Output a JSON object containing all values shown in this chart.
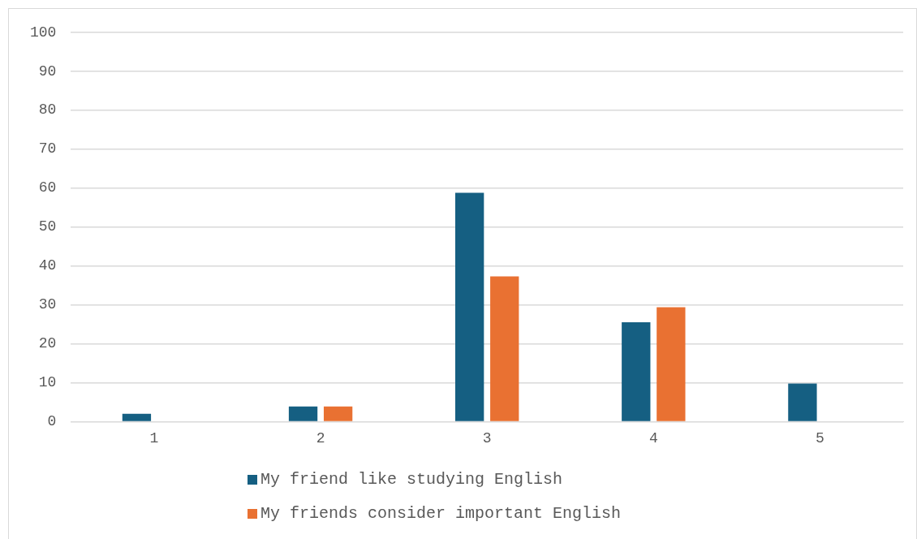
{
  "chart_data": {
    "type": "bar",
    "categories": [
      "1",
      "2",
      "3",
      "4",
      "5"
    ],
    "series": [
      {
        "name": "My friend like studying English",
        "color": "#155f82",
        "values": [
          2,
          3.9,
          58.8,
          25.5,
          9.8
        ]
      },
      {
        "name": "My friends consider important English",
        "color": "#e97132",
        "values": [
          0,
          3.9,
          37.3,
          29.4,
          0
        ]
      }
    ],
    "ylim": [
      0,
      100
    ],
    "yticks": [
      0,
      10,
      20,
      30,
      40,
      50,
      60,
      70,
      80,
      90,
      100
    ],
    "grid": "y",
    "legend": "bottom"
  }
}
